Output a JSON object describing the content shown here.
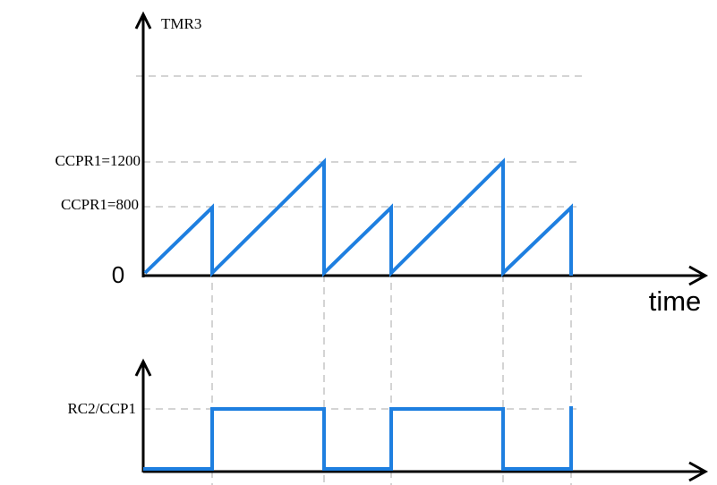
{
  "labels": {
    "top_axis": "TMR3",
    "level_high": "CCPR1=1200",
    "level_low": "CCPR1=800",
    "origin": "0",
    "x_axis": "time",
    "bottom_axis": "RC2/CCP1"
  }
}
